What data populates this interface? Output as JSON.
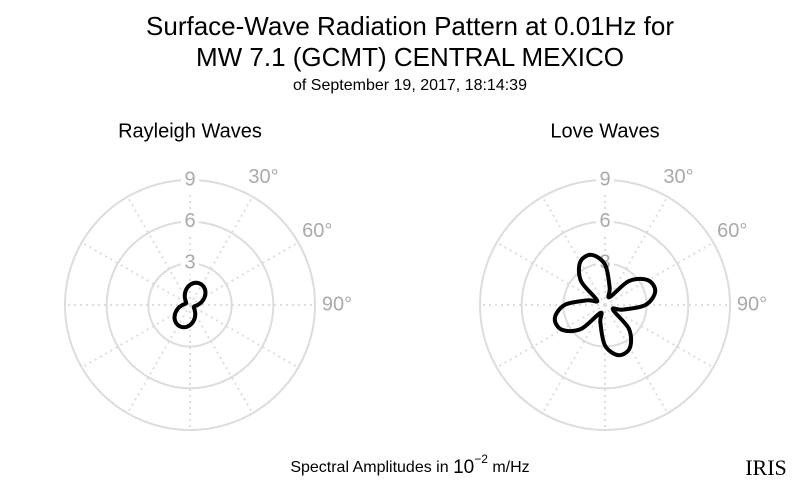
{
  "title": [
    "Surface-Wave Radiation Pattern at 0.01Hz for",
    "MW 7.1 (GCMT) CENTRAL MEXICO"
  ],
  "subtitle": "of September 19, 2017, 18:14:39",
  "chart_data": [
    {
      "type": "polar",
      "title": "Rayleigh Waves",
      "color": "#000000",
      "theta": [
        0,
        15,
        30,
        45,
        60,
        75,
        90,
        105,
        120,
        135,
        150,
        165,
        180,
        195,
        210,
        225,
        240,
        255,
        270,
        285,
        300,
        315,
        330,
        345
      ],
      "r": [
        1.45,
        1.66,
        1.69,
        1.54,
        1.24,
        0.88,
        0.55,
        0.34,
        0.31,
        0.46,
        0.76,
        1.12,
        1.45,
        1.66,
        1.69,
        1.54,
        1.24,
        0.88,
        0.55,
        0.34,
        0.31,
        0.46,
        0.76,
        1.12
      ],
      "rlim": [
        0,
        9
      ],
      "rticks": [
        3,
        6,
        9
      ],
      "thetaticks": [
        {
          "value": 30,
          "label": "30°"
        },
        {
          "value": 60,
          "label": "60°"
        },
        {
          "value": 90,
          "label": "90°"
        }
      ]
    },
    {
      "type": "polar",
      "title": "Love Waves",
      "color": "#000000",
      "theta": [
        0,
        15,
        30,
        45,
        60,
        75,
        90,
        105,
        120,
        135,
        150,
        165,
        180,
        195,
        210,
        225,
        240,
        255,
        270,
        285,
        300,
        315,
        330,
        345
      ],
      "r": [
        2.91,
        1.3,
        0.66,
        2.44,
        3.57,
        3.74,
        2.91,
        1.3,
        0.66,
        2.44,
        3.57,
        3.74,
        2.91,
        1.3,
        0.66,
        2.44,
        3.57,
        3.74,
        2.91,
        1.3,
        0.66,
        2.44,
        3.57,
        3.74
      ],
      "rlim": [
        0,
        9
      ],
      "rticks": [
        3,
        6,
        9
      ],
      "thetaticks": [
        {
          "value": 30,
          "label": "30°"
        },
        {
          "value": 60,
          "label": "60°"
        },
        {
          "value": 90,
          "label": "90°"
        }
      ]
    }
  ],
  "footer": {
    "text": "Spectral Amplitudes in ",
    "base": "10",
    "exponent": "−2",
    "unit": " m/Hz"
  },
  "logo": "IRIS"
}
